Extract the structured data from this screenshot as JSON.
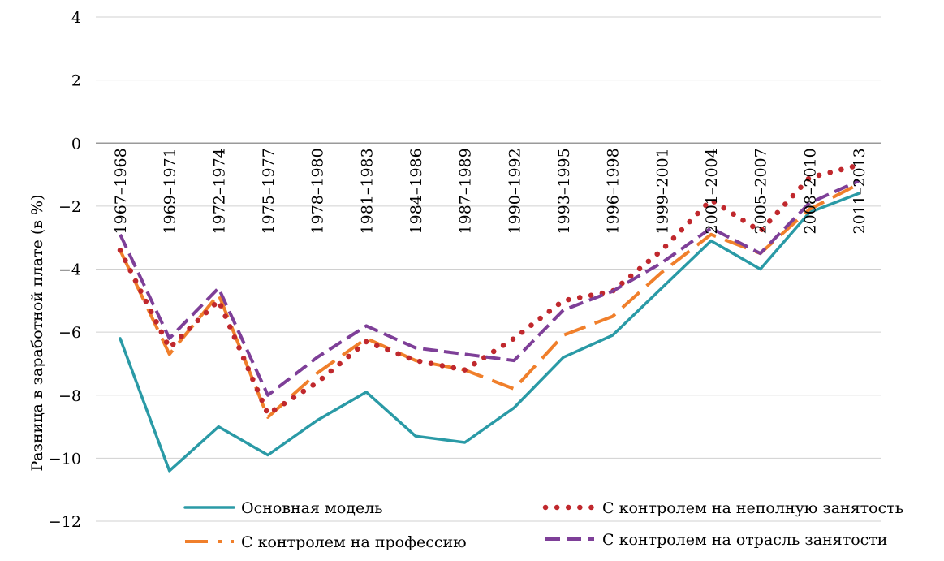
{
  "chart_data": {
    "type": "line",
    "title": "",
    "xlabel": "",
    "ylabel": "Разница в заработной плате (в %)",
    "ylim": [
      -12,
      4
    ],
    "yticks": [
      4,
      2,
      0,
      -2,
      -4,
      -6,
      -8,
      -10,
      -12
    ],
    "ytick_labels": [
      "4",
      "2",
      "0",
      "−2",
      "−4",
      "−6",
      "−8",
      "−10",
      "−12"
    ],
    "grid": true,
    "legend_position": "bottom",
    "categories": [
      "1967–1968",
      "1969–1971",
      "1972–1974",
      "1975–1977",
      "1978–1980",
      "1981–1983",
      "1984–1986",
      "1987–1989",
      "1990–1992",
      "1993–1995",
      "1996–1998",
      "1999–2001",
      "2001–2004",
      "2005–2007",
      "2008–2010",
      "2011–2013"
    ],
    "series": [
      {
        "name": "Основная модель",
        "color": "#2a9aa6",
        "style": "solid",
        "values": [
          -6.2,
          -10.4,
          -9.0,
          -9.9,
          -8.8,
          -7.9,
          -9.3,
          -9.5,
          -8.4,
          -6.8,
          -6.1,
          -4.6,
          -3.1,
          -4.0,
          -2.2,
          -1.6
        ]
      },
      {
        "name": "С контролем на неполную занятость",
        "color": "#c0282d",
        "style": "dotted",
        "values": [
          -3.4,
          -6.5,
          -5.0,
          -8.6,
          -7.6,
          -6.3,
          -6.9,
          -7.2,
          -6.2,
          -5.0,
          -4.7,
          -3.4,
          -1.8,
          -2.8,
          -1.1,
          -0.7
        ]
      },
      {
        "name": "С контролем на профессию",
        "color": "#f07f2b",
        "style": "dashed",
        "values": [
          -3.4,
          -6.7,
          -4.8,
          -8.7,
          -7.3,
          -6.2,
          -6.9,
          -7.2,
          -7.8,
          -6.1,
          -5.5,
          -4.1,
          -2.9,
          -3.5,
          -2.1,
          -1.3
        ]
      },
      {
        "name": "С контролем на отрасль занятости",
        "color": "#7e3f98",
        "style": "dashed",
        "values": [
          -2.9,
          -6.2,
          -4.6,
          -8.0,
          -6.8,
          -5.8,
          -6.5,
          -6.7,
          -6.9,
          -5.3,
          -4.7,
          -3.8,
          -2.7,
          -3.5,
          -1.9,
          -1.2
        ]
      }
    ]
  }
}
